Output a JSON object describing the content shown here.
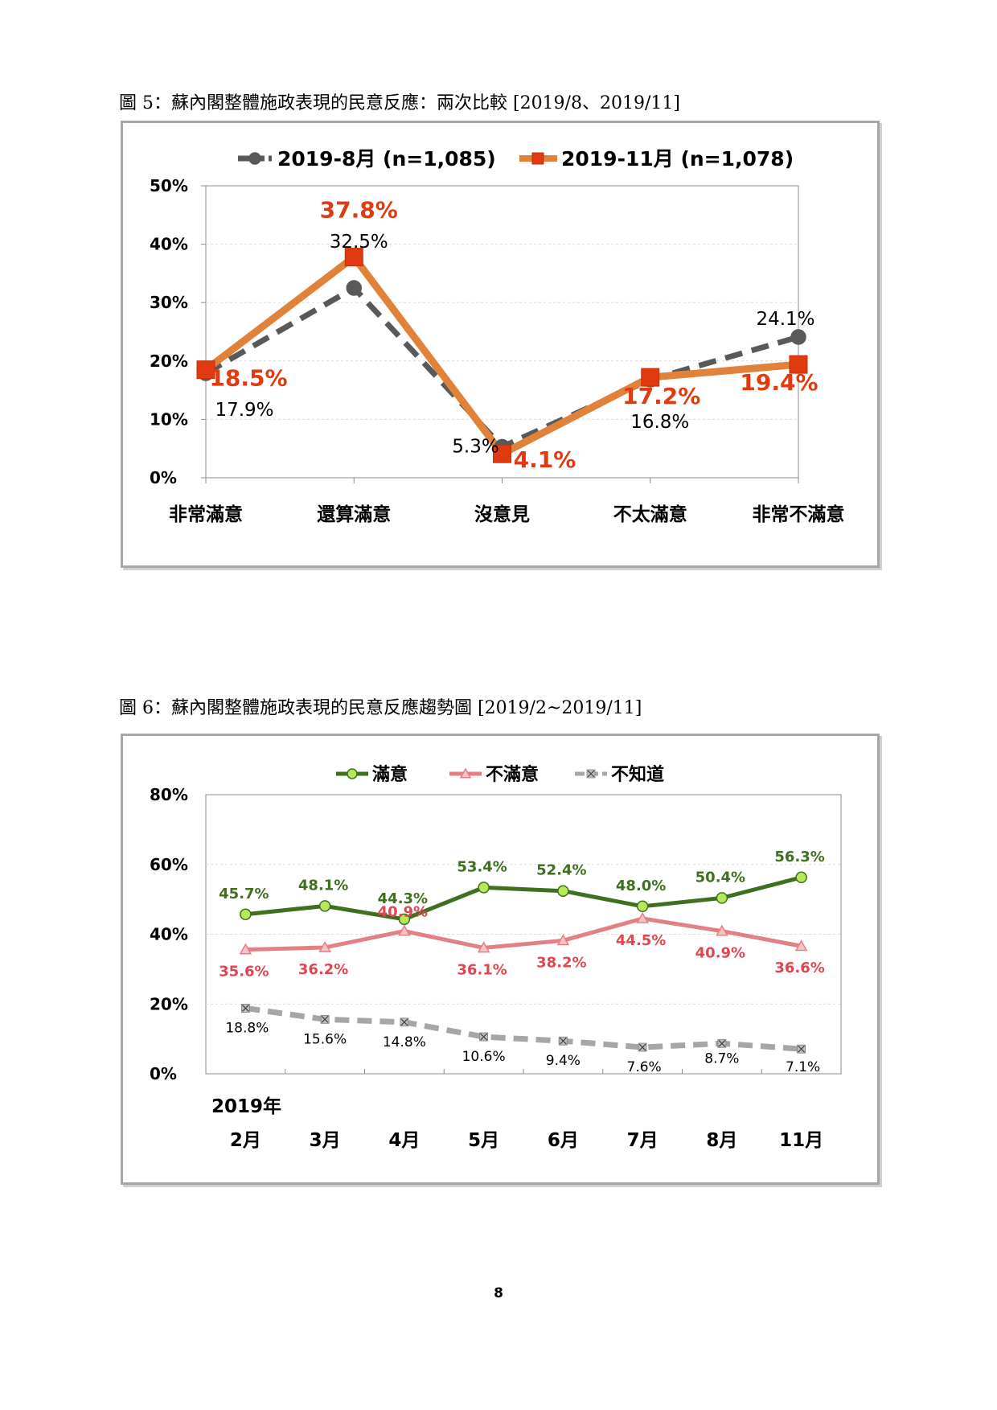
{
  "figure1": {
    "caption": "圖 5：蘇內閣整體施政表現的民意反應：兩次比較  [2019/8、2019/11]",
    "chart_data": {
      "type": "line",
      "categories": [
        "非常滿意",
        "還算滿意",
        "沒意見",
        "不太滿意",
        "非常不滿意"
      ],
      "series": [
        {
          "name": "2019-8月 (n=1,085)",
          "values": [
            17.9,
            32.5,
            5.3,
            16.8,
            24.1
          ],
          "labels": [
            "17.9%",
            "32.5%",
            "5.3%",
            "16.8%",
            "24.1%"
          ],
          "color": "#595959",
          "marker": "circle",
          "dash": true
        },
        {
          "name": "2019-11月 (n=1,078)",
          "values": [
            18.5,
            37.8,
            4.1,
            17.2,
            19.4
          ],
          "labels": [
            "18.5%",
            "37.8%",
            "4.1%",
            "17.2%",
            "19.4%"
          ],
          "color": "#e0823a",
          "markerColor": "#e03b10",
          "labelColor": "#e03b10",
          "marker": "square",
          "dash": false
        }
      ],
      "ylim": [
        0,
        50
      ],
      "yticks": [
        "0%",
        "10%",
        "20%",
        "30%",
        "40%",
        "50%"
      ],
      "legend": "top",
      "grid": true
    }
  },
  "figure2": {
    "caption": "圖 6：蘇內閣整體施政表現的民意反應趨勢圖  [2019/2~2019/11]",
    "chart_data": {
      "type": "line",
      "categories": [
        "2月",
        "3月",
        "4月",
        "5月",
        "6月",
        "7月",
        "8月",
        "11月"
      ],
      "year_label": "2019年",
      "series": [
        {
          "name": "滿意",
          "values": [
            45.7,
            48.1,
            44.3,
            53.4,
            52.4,
            48.0,
            50.4,
            56.3
          ],
          "labels": [
            "45.7%",
            "48.1%",
            "44.3%",
            "53.4%",
            "52.4%",
            "48.0%",
            "50.4%",
            "56.3%"
          ],
          "color": "#3f6f1f",
          "markerColor": "#b7e85a",
          "labelColor": "#3f6f1f",
          "marker": "circle"
        },
        {
          "name": "不滿意",
          "values": [
            35.6,
            36.2,
            40.9,
            36.1,
            38.2,
            44.5,
            40.9,
            36.6
          ],
          "labels": [
            "35.6%",
            "36.2%",
            "40.9%",
            "36.1%",
            "38.2%",
            "44.5%",
            "40.9%",
            "36.6%"
          ],
          "color": "#e38086",
          "markerColor": "#f6c2c6",
          "labelColor": "#e0464f",
          "marker": "triangle"
        },
        {
          "name": "不知道",
          "values": [
            18.8,
            15.6,
            14.8,
            10.6,
            9.4,
            7.6,
            8.7,
            7.1
          ],
          "labels": [
            "18.8%",
            "15.6%",
            "14.8%",
            "10.6%",
            "9.4%",
            "7.6%",
            "8.7%",
            "7.1%"
          ],
          "color": "#a6a6a6",
          "markerColor": "#bfbfbf",
          "labelColor": "#000000",
          "marker": "x",
          "dash": true
        }
      ],
      "ylim": [
        0,
        80
      ],
      "yticks": [
        "0%",
        "20%",
        "40%",
        "60%",
        "80%"
      ],
      "legend": "top",
      "grid": true
    }
  },
  "page_number": "8"
}
